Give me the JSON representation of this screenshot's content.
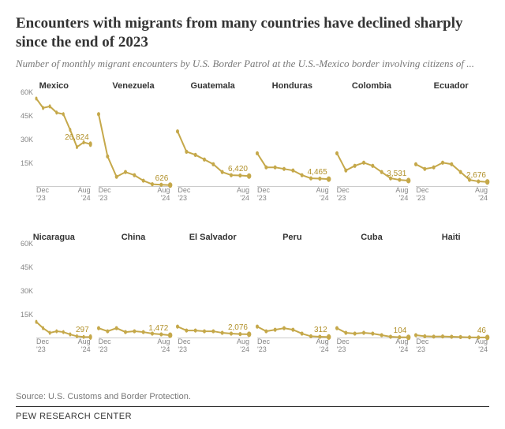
{
  "title": "Encounters with migrants from many countries have declined sharply since the end of 2023",
  "subtitle": "Number of monthly migrant encounters by U.S. Border Patrol at the U.S.-Mexico border involving citizens of ...",
  "source": "Source: U.S. Customs and Border Protection.",
  "footer": "PEW RESEARCH CENTER",
  "chart": {
    "type": "small-multiples-line",
    "background_color": "#ffffff",
    "line_color": "#c5a84a",
    "line_width": 2,
    "marker_style": "circle",
    "marker_radius": 2.2,
    "marker_fill": "#c5a84a",
    "last_marker_radius": 3,
    "ylim": [
      0,
      60000
    ],
    "yticks": [
      15000,
      30000,
      45000,
      60000
    ],
    "ytick_labels": [
      "15K",
      "30K",
      "45K",
      "60K"
    ],
    "x_start_label": "Dec\n'23",
    "x_end_label": "Aug\n'24",
    "n_points": 9,
    "title_fontsize": 19,
    "subtitle_fontsize": 13,
    "panel_title_fontsize": 11,
    "tick_fontsize": 9,
    "value_label_fontsize": 10,
    "value_label_color": "#b19029",
    "tick_color": "#858585",
    "axis_color": "#cccccc"
  },
  "panels": [
    {
      "name": "Mexico",
      "show_y": true,
      "last_label": "26,824",
      "values": [
        56000,
        50000,
        51000,
        47000,
        46000,
        36000,
        25000,
        28000,
        26824
      ]
    },
    {
      "name": "Venezuela",
      "show_y": false,
      "last_label": "626",
      "values": [
        46000,
        19000,
        6000,
        9000,
        7000,
        3500,
        1200,
        900,
        626
      ]
    },
    {
      "name": "Guatemala",
      "show_y": false,
      "last_label": "6,420",
      "values": [
        35000,
        22000,
        20000,
        17000,
        14000,
        9000,
        7000,
        6800,
        6420
      ]
    },
    {
      "name": "Honduras",
      "show_y": false,
      "last_label": "4,465",
      "values": [
        21000,
        12000,
        12000,
        11000,
        10000,
        7000,
        5000,
        4800,
        4465
      ]
    },
    {
      "name": "Colombia",
      "show_y": false,
      "last_label": "3,531",
      "values": [
        21000,
        10000,
        13000,
        15000,
        13000,
        9000,
        5000,
        4000,
        3531
      ]
    },
    {
      "name": "Ecuador",
      "show_y": false,
      "last_label": "2,676",
      "values": [
        14000,
        11000,
        12000,
        15000,
        14000,
        9000,
        4000,
        3000,
        2676
      ]
    },
    {
      "name": "Nicaragua",
      "show_y": true,
      "last_label": "297",
      "values": [
        10000,
        6000,
        3000,
        4000,
        3500,
        2000,
        800,
        400,
        297
      ]
    },
    {
      "name": "China",
      "show_y": false,
      "last_label": "1,472",
      "values": [
        6000,
        4000,
        6000,
        3500,
        4000,
        3500,
        2500,
        2000,
        1472
      ]
    },
    {
      "name": "El Salvador",
      "show_y": false,
      "last_label": "2,076",
      "values": [
        7000,
        4500,
        4500,
        4000,
        4000,
        3000,
        2500,
        2200,
        2076
      ]
    },
    {
      "name": "Peru",
      "show_y": false,
      "last_label": "312",
      "values": [
        7000,
        4000,
        5000,
        6000,
        5000,
        2500,
        800,
        500,
        312
      ]
    },
    {
      "name": "Cuba",
      "show_y": false,
      "last_label": "104",
      "values": [
        6000,
        3000,
        2500,
        3000,
        2500,
        1500,
        500,
        200,
        104
      ]
    },
    {
      "name": "Haiti",
      "show_y": false,
      "last_label": "46",
      "values": [
        1500,
        800,
        600,
        700,
        500,
        300,
        150,
        80,
        46
      ]
    }
  ]
}
